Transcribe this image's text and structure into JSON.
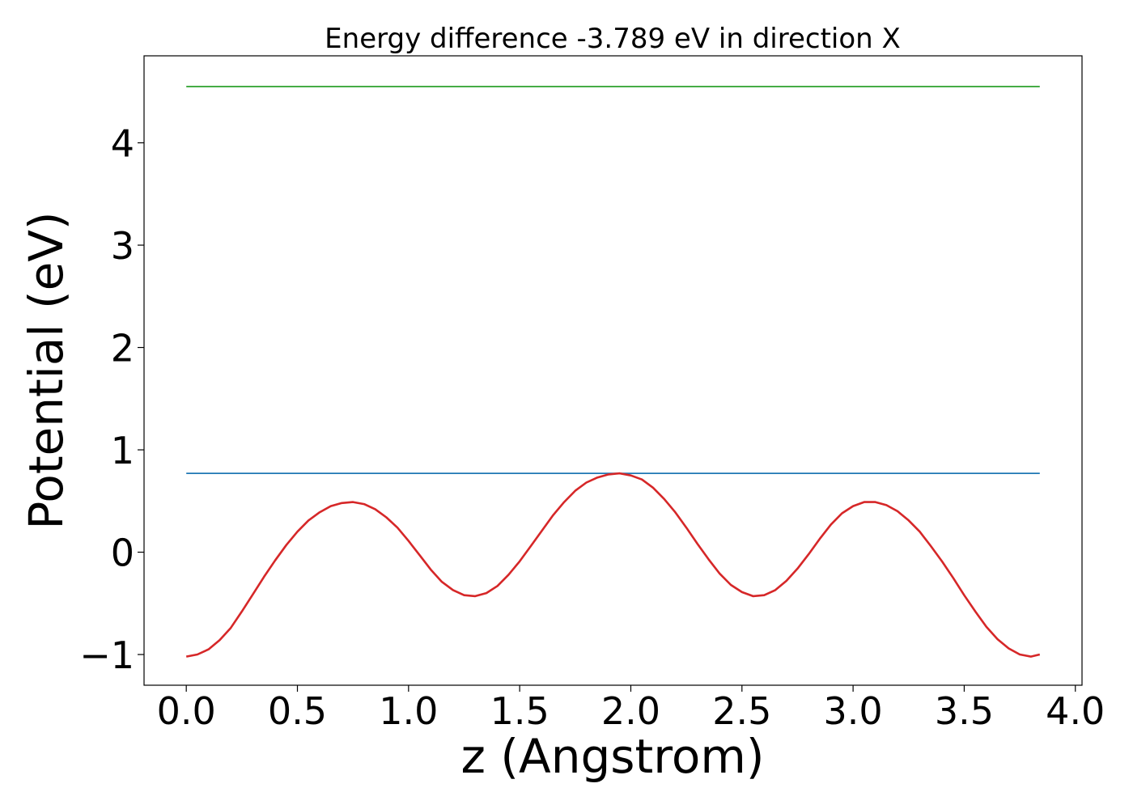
{
  "chart_data": {
    "type": "line",
    "title": "Energy difference -3.789 eV in direction X",
    "xlabel": "z (Angstrom)",
    "ylabel": "Potential (eV)",
    "xlim": [
      -0.19,
      4.03
    ],
    "ylim": [
      -1.3,
      4.85
    ],
    "xticks": [
      {
        "value": 0.0,
        "label": "0.0"
      },
      {
        "value": 0.5,
        "label": "0.5"
      },
      {
        "value": 1.0,
        "label": "1.0"
      },
      {
        "value": 1.5,
        "label": "1.5"
      },
      {
        "value": 2.0,
        "label": "2.0"
      },
      {
        "value": 2.5,
        "label": "2.5"
      },
      {
        "value": 3.0,
        "label": "3.0"
      },
      {
        "value": 3.5,
        "label": "3.5"
      },
      {
        "value": 4.0,
        "label": "4.0"
      }
    ],
    "yticks": [
      {
        "value": -1,
        "label": "−1"
      },
      {
        "value": 0,
        "label": "0"
      },
      {
        "value": 1,
        "label": "1"
      },
      {
        "value": 2,
        "label": "2"
      },
      {
        "value": 3,
        "label": "3"
      },
      {
        "value": 4,
        "label": "4"
      }
    ],
    "grid": false,
    "series": [
      {
        "color": "#2ca02c",
        "x": [
          0.0,
          3.84
        ],
        "y": [
          4.55,
          4.55
        ]
      },
      {
        "color": "#1f77b4",
        "x": [
          0.0,
          3.84
        ],
        "y": [
          0.77,
          0.77
        ]
      },
      {
        "color": "#d62728",
        "x": [
          0.0,
          0.05,
          0.1,
          0.15,
          0.2,
          0.25,
          0.3,
          0.35,
          0.4,
          0.45,
          0.5,
          0.55,
          0.6,
          0.65,
          0.7,
          0.75,
          0.8,
          0.85,
          0.9,
          0.95,
          1.0,
          1.05,
          1.1,
          1.15,
          1.2,
          1.25,
          1.3,
          1.35,
          1.4,
          1.45,
          1.5,
          1.55,
          1.6,
          1.65,
          1.7,
          1.75,
          1.8,
          1.85,
          1.9,
          1.95,
          2.0,
          2.05,
          2.1,
          2.15,
          2.2,
          2.25,
          2.3,
          2.35,
          2.4,
          2.45,
          2.5,
          2.55,
          2.6,
          2.65,
          2.7,
          2.75,
          2.8,
          2.85,
          2.9,
          2.95,
          3.0,
          3.05,
          3.1,
          3.15,
          3.2,
          3.25,
          3.3,
          3.35,
          3.4,
          3.45,
          3.5,
          3.55,
          3.6,
          3.65,
          3.7,
          3.75,
          3.8,
          3.84
        ],
        "y": [
          -1.02,
          -1.0,
          -0.95,
          -0.86,
          -0.74,
          -0.58,
          -0.41,
          -0.24,
          -0.08,
          0.07,
          0.2,
          0.31,
          0.39,
          0.45,
          0.48,
          0.49,
          0.47,
          0.42,
          0.34,
          0.24,
          0.11,
          -0.03,
          -0.17,
          -0.29,
          -0.37,
          -0.42,
          -0.43,
          -0.4,
          -0.33,
          -0.22,
          -0.09,
          0.06,
          0.21,
          0.36,
          0.49,
          0.6,
          0.68,
          0.73,
          0.76,
          0.77,
          0.75,
          0.71,
          0.63,
          0.52,
          0.39,
          0.24,
          0.08,
          -0.07,
          -0.21,
          -0.32,
          -0.39,
          -0.43,
          -0.42,
          -0.37,
          -0.28,
          -0.16,
          -0.02,
          0.13,
          0.27,
          0.38,
          0.45,
          0.49,
          0.49,
          0.46,
          0.4,
          0.31,
          0.2,
          0.06,
          -0.09,
          -0.25,
          -0.42,
          -0.58,
          -0.73,
          -0.85,
          -0.94,
          -1.0,
          -1.02,
          -1.0
        ]
      }
    ]
  }
}
